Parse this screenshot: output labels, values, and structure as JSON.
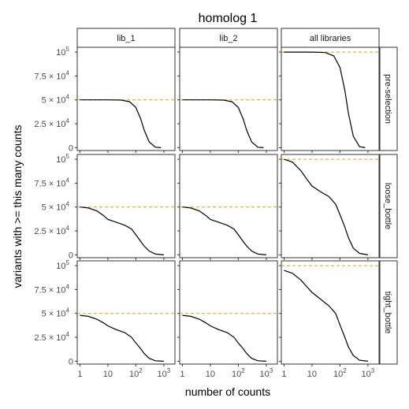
{
  "chart_data": {
    "type": "line",
    "title": "homolog 1",
    "xlabel": "number of counts",
    "ylabel": "variants with >= this many counts",
    "columns": [
      "lib_1",
      "lib_2",
      "all libraries"
    ],
    "rows": [
      "pre-selection",
      "loose_bottle",
      "tight_bottle"
    ],
    "x_scale": "log10",
    "xlim": [
      0.8,
      2500
    ],
    "ylim": [
      -3000,
      105000
    ],
    "x_ticks": [
      {
        "value": 1,
        "base": "1",
        "exp": ""
      },
      {
        "value": 10,
        "base": "10",
        "exp": ""
      },
      {
        "value": 100,
        "base": "10",
        "exp": "2"
      },
      {
        "value": 1000,
        "base": "10",
        "exp": "3"
      }
    ],
    "y_ticks": [
      {
        "value": 0,
        "mantissa": "0",
        "exp": ""
      },
      {
        "value": 25000,
        "mantissa": "2.5 × 10",
        "exp": "4"
      },
      {
        "value": 50000,
        "mantissa": "5 × 10",
        "exp": "4"
      },
      {
        "value": 75000,
        "mantissa": "7.5 × 10",
        "exp": "4"
      },
      {
        "value": 100000,
        "mantissa": "10",
        "exp": "5"
      }
    ],
    "reference_line_color": "#e69f00",
    "line_color": "#000000",
    "panels": [
      {
        "row": "pre-selection",
        "col": "lib_1",
        "ref": 50000,
        "x": [
          1,
          10,
          30,
          60,
          100,
          150,
          200,
          300,
          500,
          800
        ],
        "y": [
          50000,
          50000,
          49800,
          48000,
          42000,
          30000,
          18000,
          6000,
          500,
          0
        ]
      },
      {
        "row": "pre-selection",
        "col": "lib_2",
        "ref": 50000,
        "x": [
          1,
          10,
          30,
          60,
          100,
          150,
          200,
          300,
          500,
          800
        ],
        "y": [
          50000,
          50000,
          49800,
          48000,
          42000,
          30000,
          18000,
          6000,
          500,
          0
        ]
      },
      {
        "row": "pre-selection",
        "col": "all libraries",
        "ref": 100000,
        "x": [
          1,
          10,
          30,
          60,
          100,
          150,
          200,
          300,
          500,
          800
        ],
        "y": [
          100000,
          100000,
          99500,
          96000,
          84000,
          60000,
          36000,
          12000,
          1000,
          0
        ]
      },
      {
        "row": "loose_bottle",
        "col": "lib_1",
        "ref": 50000,
        "x": [
          1,
          2,
          4,
          7,
          10,
          20,
          40,
          70,
          100,
          150,
          200,
          300,
          500,
          1000
        ],
        "y": [
          50000,
          49000,
          46000,
          41000,
          37000,
          34000,
          31000,
          27000,
          21000,
          14000,
          9000,
          4000,
          800,
          0
        ]
      },
      {
        "row": "loose_bottle",
        "col": "lib_2",
        "ref": 50000,
        "x": [
          1,
          2,
          4,
          7,
          10,
          20,
          40,
          70,
          100,
          150,
          200,
          300,
          500,
          1000
        ],
        "y": [
          50000,
          49000,
          46000,
          41000,
          37000,
          34000,
          31000,
          27000,
          21000,
          14000,
          9000,
          4000,
          800,
          0
        ]
      },
      {
        "row": "loose_bottle",
        "col": "all libraries",
        "ref": 100000,
        "x": [
          1,
          2,
          4,
          7,
          10,
          20,
          40,
          70,
          100,
          150,
          200,
          300,
          500,
          1000
        ],
        "y": [
          100000,
          97000,
          88000,
          78000,
          72000,
          66000,
          61000,
          53000,
          42000,
          29000,
          18000,
          7000,
          1500,
          0
        ]
      },
      {
        "row": "tight_bottle",
        "col": "lib_1",
        "ref": 50000,
        "x": [
          1,
          2,
          4,
          7,
          10,
          20,
          40,
          70,
          100,
          150,
          200,
          300,
          500,
          1000
        ],
        "y": [
          48000,
          47000,
          44000,
          40000,
          37000,
          33000,
          30000,
          25000,
          19000,
          13000,
          8000,
          3000,
          500,
          0
        ]
      },
      {
        "row": "tight_bottle",
        "col": "lib_2",
        "ref": 50000,
        "x": [
          1,
          2,
          4,
          7,
          10,
          20,
          40,
          70,
          100,
          150,
          200,
          300,
          500,
          1000
        ],
        "y": [
          48000,
          47000,
          44000,
          40000,
          37000,
          33000,
          30000,
          25000,
          19000,
          13000,
          8000,
          3000,
          500,
          0
        ]
      },
      {
        "row": "tight_bottle",
        "col": "all libraries",
        "ref": 100000,
        "x": [
          1,
          2,
          4,
          7,
          10,
          20,
          40,
          70,
          100,
          150,
          200,
          300,
          500,
          1000
        ],
        "y": [
          95000,
          92000,
          85000,
          77000,
          72000,
          65000,
          58000,
          50000,
          38000,
          25000,
          15000,
          6000,
          1000,
          0
        ]
      }
    ]
  }
}
